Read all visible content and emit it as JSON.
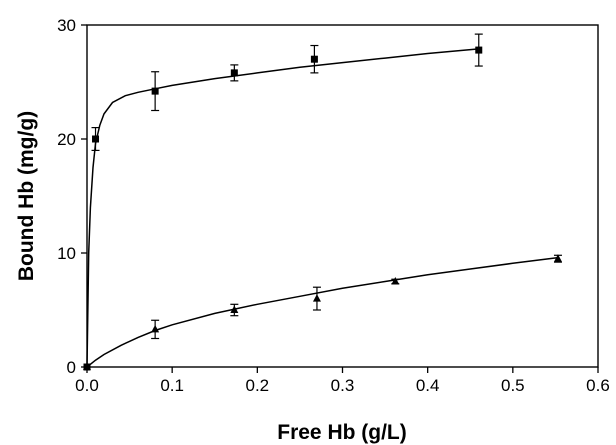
{
  "chart_data": {
    "type": "scatter",
    "title": "",
    "xlabel": "Free Hb (g/L)",
    "ylabel": "Bound Hb (mg/g)",
    "xlim": [
      0.0,
      0.6
    ],
    "ylim": [
      0,
      30
    ],
    "xticks": [
      "0.0",
      "0.1",
      "0.2",
      "0.3",
      "0.4",
      "0.5",
      "0.6"
    ],
    "yticks": [
      "0",
      "10",
      "20",
      "30"
    ],
    "grid": false,
    "legend": "none",
    "series": [
      {
        "marker": "square",
        "color": "#000000",
        "points": [
          {
            "x": 0.0,
            "y": 0.0,
            "err": 0.0
          },
          {
            "x": 0.01,
            "y": 20.0,
            "err": 1.0
          },
          {
            "x": 0.08,
            "y": 24.2,
            "err": 1.7
          },
          {
            "x": 0.173,
            "y": 25.8,
            "err": 0.7
          },
          {
            "x": 0.267,
            "y": 27.0,
            "err": 1.2
          },
          {
            "x": 0.46,
            "y": 27.8,
            "err": 1.4
          }
        ],
        "fit_curve": [
          {
            "x": 0.0,
            "y": 0.0
          },
          {
            "x": 0.002,
            "y": 10.0
          },
          {
            "x": 0.004,
            "y": 14.0
          },
          {
            "x": 0.007,
            "y": 17.5
          },
          {
            "x": 0.01,
            "y": 19.6
          },
          {
            "x": 0.015,
            "y": 21.2
          },
          {
            "x": 0.02,
            "y": 22.2
          },
          {
            "x": 0.03,
            "y": 23.2
          },
          {
            "x": 0.045,
            "y": 23.8
          },
          {
            "x": 0.06,
            "y": 24.1
          },
          {
            "x": 0.08,
            "y": 24.4
          },
          {
            "x": 0.1,
            "y": 24.7
          },
          {
            "x": 0.15,
            "y": 25.3
          },
          {
            "x": 0.2,
            "y": 25.8
          },
          {
            "x": 0.25,
            "y": 26.3
          },
          {
            "x": 0.3,
            "y": 26.7
          },
          {
            "x": 0.35,
            "y": 27.1
          },
          {
            "x": 0.4,
            "y": 27.5
          },
          {
            "x": 0.46,
            "y": 27.9
          }
        ]
      },
      {
        "marker": "triangle",
        "color": "#000000",
        "points": [
          {
            "x": 0.0,
            "y": 0.0,
            "err": 0.0
          },
          {
            "x": 0.08,
            "y": 3.3,
            "err": 0.8
          },
          {
            "x": 0.173,
            "y": 5.0,
            "err": 0.5
          },
          {
            "x": 0.27,
            "y": 6.0,
            "err": 1.0
          },
          {
            "x": 0.362,
            "y": 7.5,
            "err": 0.2
          },
          {
            "x": 0.553,
            "y": 9.5,
            "err": 0.3
          }
        ],
        "fit_curve": [
          {
            "x": 0.0,
            "y": 0.0
          },
          {
            "x": 0.01,
            "y": 0.6
          },
          {
            "x": 0.02,
            "y": 1.1
          },
          {
            "x": 0.04,
            "y": 1.9
          },
          {
            "x": 0.06,
            "y": 2.6
          },
          {
            "x": 0.08,
            "y": 3.2
          },
          {
            "x": 0.1,
            "y": 3.7
          },
          {
            "x": 0.15,
            "y": 4.7
          },
          {
            "x": 0.2,
            "y": 5.5
          },
          {
            "x": 0.25,
            "y": 6.2
          },
          {
            "x": 0.3,
            "y": 6.9
          },
          {
            "x": 0.35,
            "y": 7.5
          },
          {
            "x": 0.4,
            "y": 8.1
          },
          {
            "x": 0.45,
            "y": 8.6
          },
          {
            "x": 0.5,
            "y": 9.1
          },
          {
            "x": 0.553,
            "y": 9.6
          }
        ]
      }
    ]
  }
}
